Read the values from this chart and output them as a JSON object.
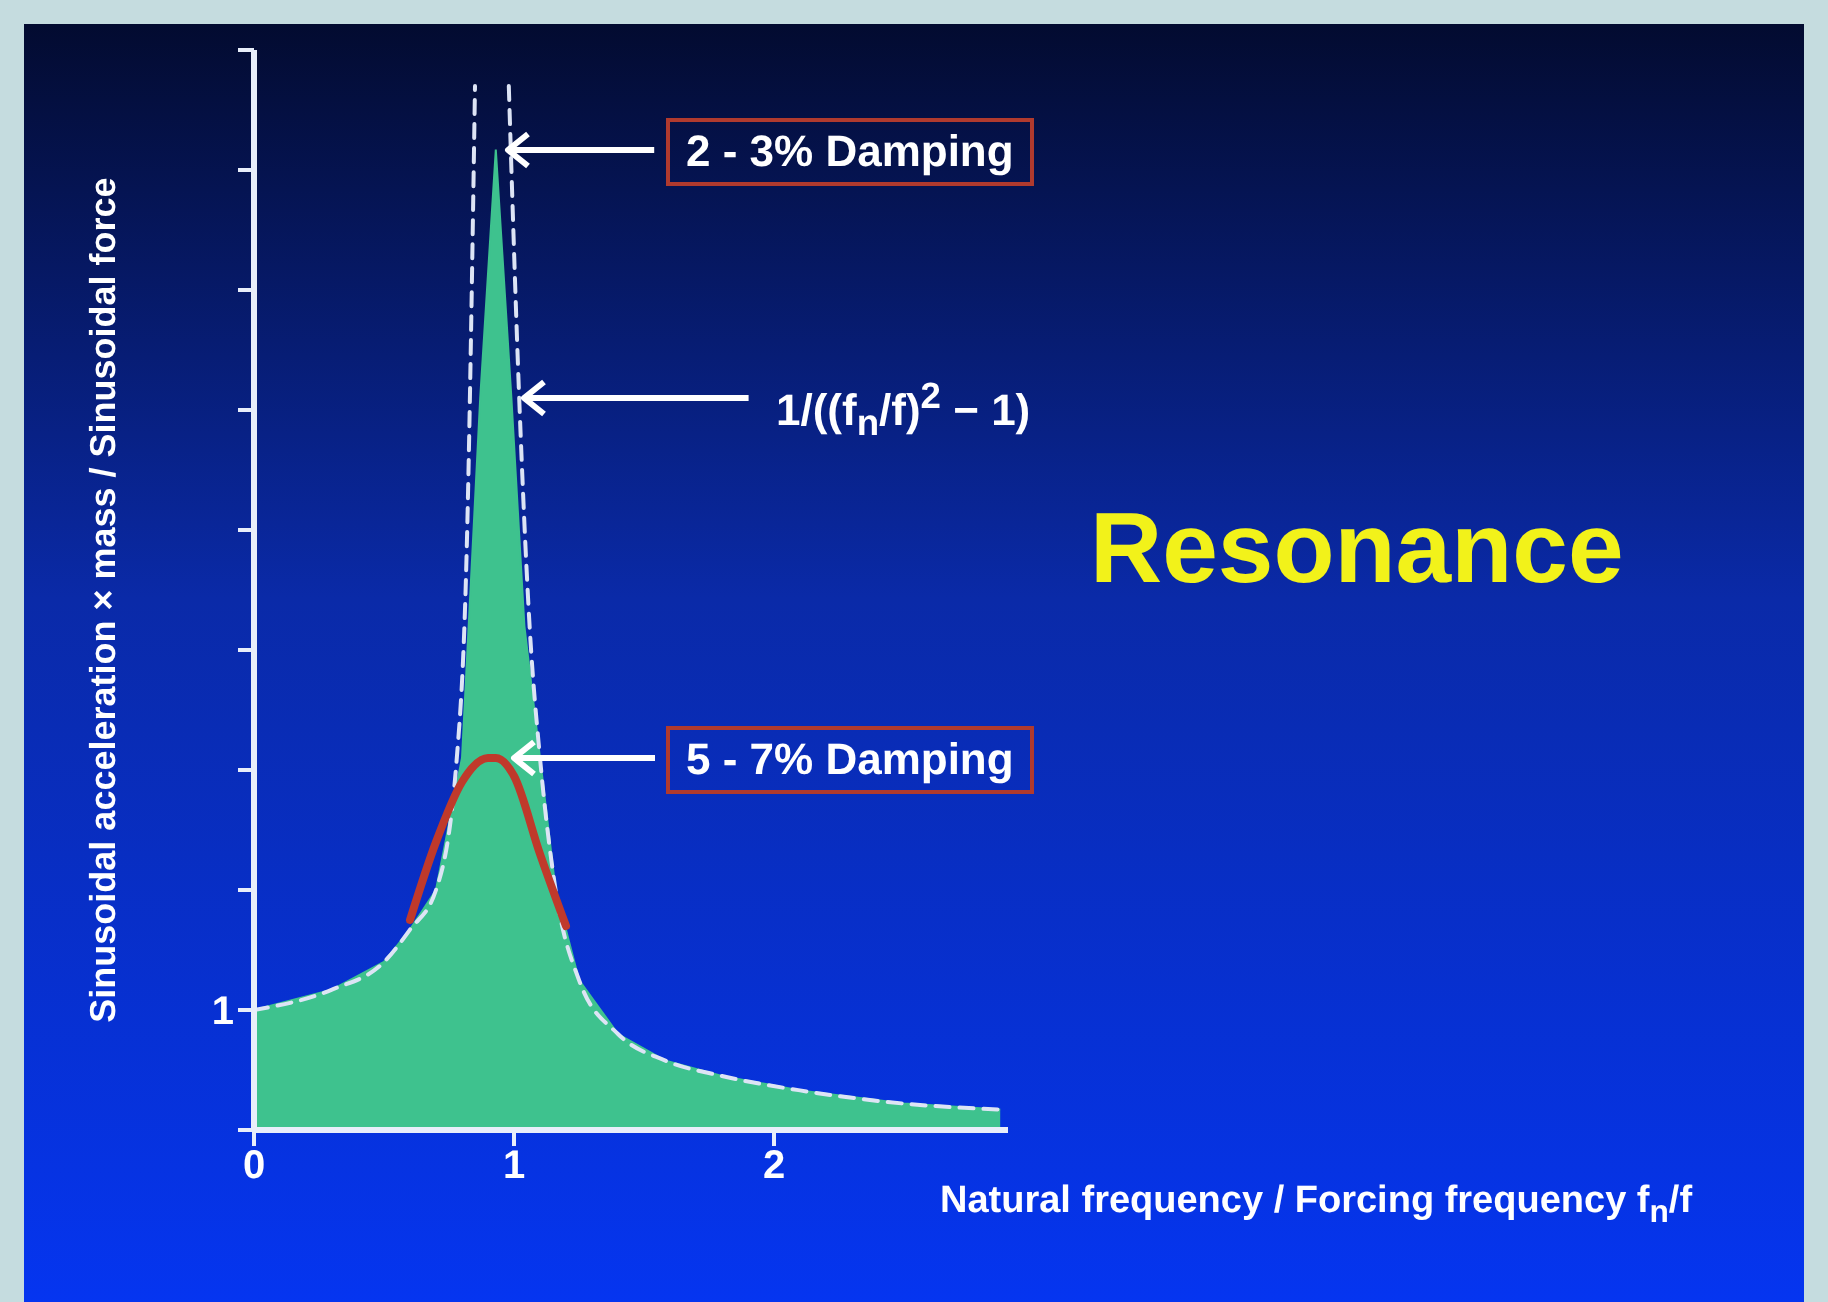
{
  "chart_data": {
    "type": "area",
    "title": "Resonance",
    "xlabel": "Natural frequency / Forcing frequency   f$_{n}$/f",
    "ylabel": "Sinusoidal acceleration × mass / Sinusoidal force",
    "xlim": [
      0,
      2.9
    ],
    "xticks": [
      0,
      1,
      2
    ],
    "ylim": [
      0,
      9
    ],
    "yticks": [
      {
        "value": 0,
        "label": null
      },
      {
        "value": 1,
        "label": "1"
      },
      {
        "value": 2,
        "label": null
      },
      {
        "value": 3,
        "label": null
      },
      {
        "value": 4,
        "label": null
      },
      {
        "value": 5,
        "label": null
      },
      {
        "value": 6,
        "label": null
      },
      {
        "value": 7,
        "label": null
      },
      {
        "value": 8,
        "label": null
      },
      {
        "value": 9,
        "label": null
      }
    ],
    "marker": "none",
    "series": [
      {
        "color": "#3ec28e",
        "x": [
          0,
          0.3,
          0.5,
          0.6,
          0.7,
          0.8,
          0.87,
          0.93,
          0.99,
          1.04,
          1.1,
          1.16,
          1.25,
          1.4,
          1.58,
          1.8,
          2.1,
          2.5,
          2.87
        ],
        "values": [
          1.0,
          1.17,
          1.4,
          1.67,
          2.0,
          3.1,
          6.1,
          8.17,
          6.1,
          4.2,
          3.1,
          2.0,
          1.25,
          0.8,
          0.58,
          0.45,
          0.33,
          0.22,
          0.17
        ]
      },
      {
        "type": "line",
        "color": "#dde4f5",
        "line_style": "dashed",
        "x": [
          0,
          0.3,
          0.5,
          0.6,
          0.7,
          0.78,
          0.82,
          0.85,
          0.92,
          0.98,
          1.02,
          1.06,
          1.1,
          1.16,
          1.25,
          1.4,
          1.58,
          1.8,
          2.1,
          2.5,
          2.87
        ],
        "values": [
          1.0,
          1.17,
          1.4,
          1.67,
          2.0,
          3.1,
          5.0,
          8.7,
          null,
          8.7,
          6.1,
          4.2,
          3.1,
          2.0,
          1.25,
          0.8,
          0.58,
          0.45,
          0.33,
          0.22,
          0.17
        ]
      },
      {
        "type": "line",
        "color": "#c0392b",
        "line_style": "solid",
        "x": [
          0.6,
          0.7,
          0.8,
          0.9,
          0.93,
          1.0,
          1.1,
          1.2
        ],
        "values": [
          1.75,
          2.4,
          2.9,
          3.1,
          3.1,
          2.95,
          2.3,
          1.7
        ]
      }
    ],
    "annotations": [
      {
        "text": "2 - 3%  Damping",
        "x": 0.93,
        "y": 8.17
      },
      {
        "text": "1/((f$_{n}$/f)$^{2}$ − 1)",
        "x": 0.99,
        "y": 6.1
      },
      {
        "text": "5 - 7% Damping",
        "x": 0.95,
        "y": 3.1
      }
    ]
  }
}
